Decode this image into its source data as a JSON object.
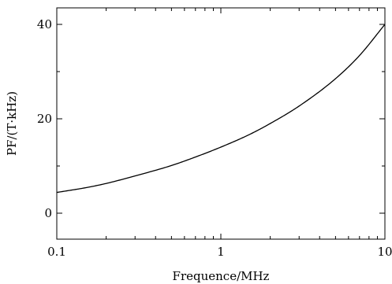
{
  "chart_data": {
    "type": "line",
    "title": "",
    "xlabel": "Frequence/MHz",
    "ylabel": "PF/(T·kHz)",
    "x_scale": "log",
    "xlim": [
      0.1,
      10
    ],
    "ylim": [
      -5.5,
      43.5
    ],
    "x_ticks": [
      {
        "value": 0.1,
        "label": "0.1"
      },
      {
        "value": 1,
        "label": "1"
      },
      {
        "value": 10,
        "label": "10"
      }
    ],
    "y_ticks": [
      {
        "value": 0,
        "label": "0"
      },
      {
        "value": 20,
        "label": "20"
      },
      {
        "value": 40,
        "label": "40"
      }
    ],
    "grid": false,
    "legend": "none",
    "line_color": "#000000",
    "series": [
      {
        "name": "",
        "x": [
          0.1,
          0.15,
          0.2,
          0.3,
          0.5,
          0.7,
          1,
          1.5,
          2,
          3,
          5,
          7,
          10
        ],
        "y": [
          4.4,
          5.4,
          6.3,
          7.9,
          10.1,
          11.9,
          14.0,
          16.7,
          19.0,
          22.7,
          28.5,
          33.4,
          40.0
        ]
      }
    ]
  }
}
